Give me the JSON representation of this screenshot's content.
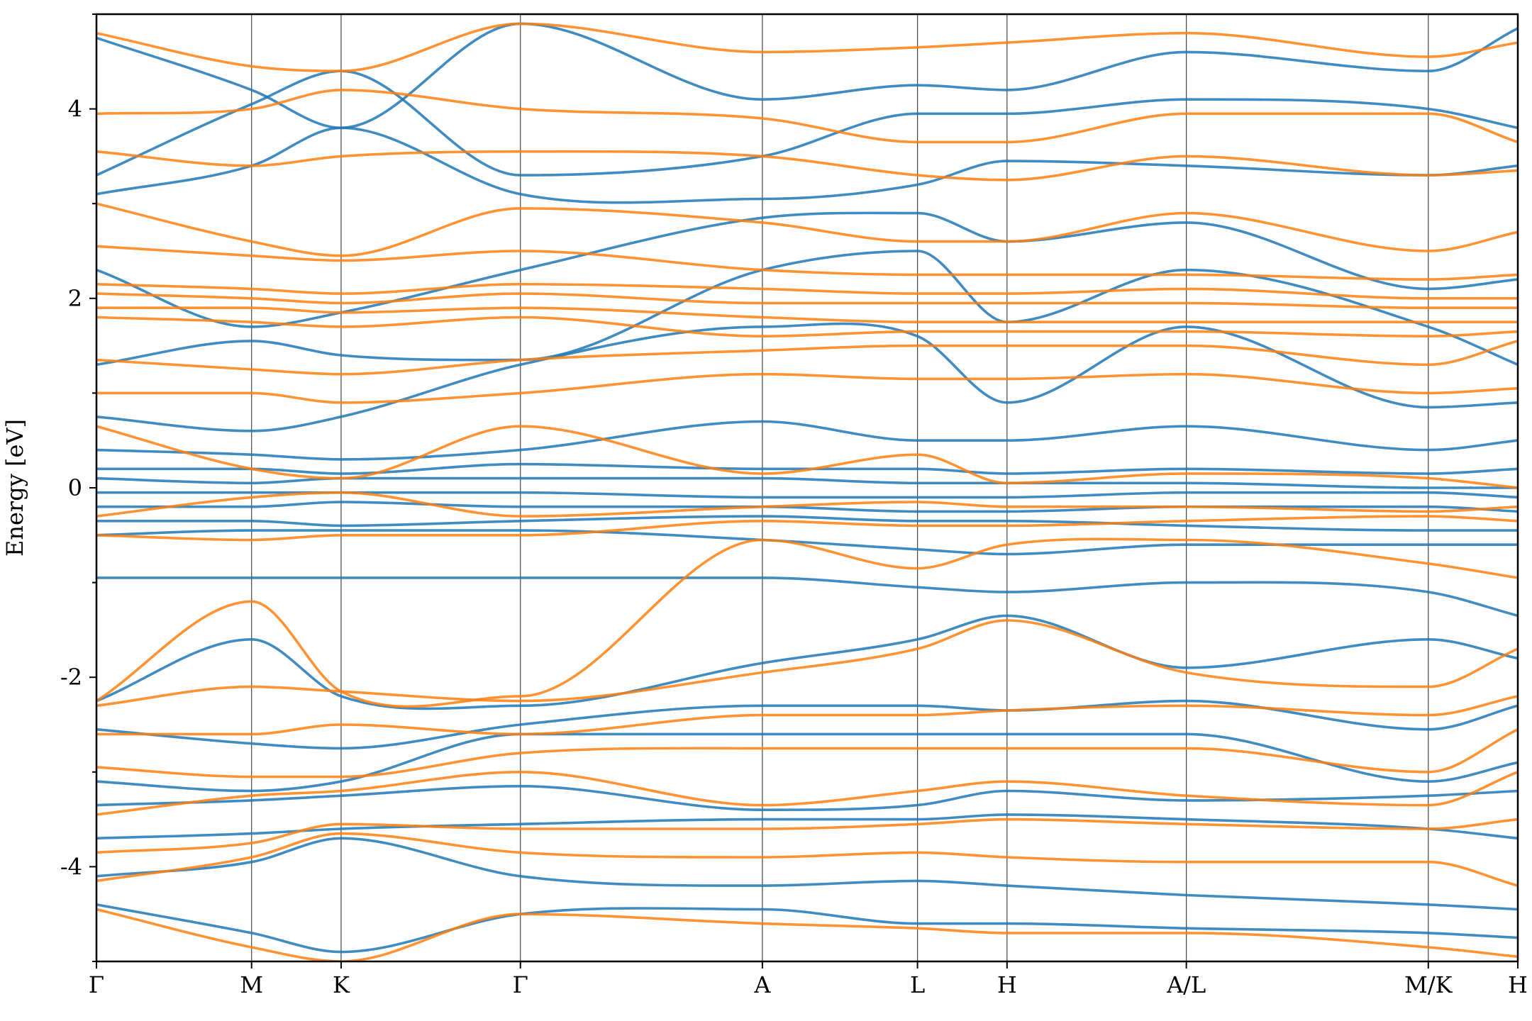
{
  "chart_data": {
    "type": "line",
    "title": "",
    "xlabel": "",
    "ylabel": "Energy [eV]",
    "ylim": [
      -5,
      5
    ],
    "yticks": [
      -4,
      -2,
      0,
      2,
      4
    ],
    "ytick_labels": [
      "-4",
      "-2",
      "0",
      "2",
      "4"
    ],
    "grid": false,
    "legend": "none",
    "kpath": {
      "labels": [
        "Γ",
        "M",
        "K",
        "Γ",
        "A",
        "L",
        "H",
        "A/L",
        "M/K",
        "H"
      ],
      "positions": [
        0,
        0.577,
        0.91,
        1.577,
        2.477,
        3.054,
        3.387,
        4.054,
        4.954,
        5.287
      ]
    },
    "series": [
      {
        "color": "#1f77b4",
        "bands": [
          [
            -4.4,
            -4.7,
            -4.9,
            -4.5,
            -4.45,
            -4.6,
            -4.6,
            -4.65,
            -4.7,
            -4.75
          ],
          [
            -4.1,
            -3.95,
            -3.7,
            -4.1,
            -4.2,
            -4.15,
            -4.2,
            -4.3,
            -4.4,
            -4.45
          ],
          [
            -3.7,
            -3.65,
            -3.6,
            -3.55,
            -3.5,
            -3.5,
            -3.45,
            -3.5,
            -3.6,
            -3.7
          ],
          [
            -3.35,
            -3.3,
            -3.25,
            -3.15,
            -3.4,
            -3.35,
            -3.2,
            -3.3,
            -3.25,
            -3.2
          ],
          [
            -3.1,
            -3.2,
            -3.1,
            -2.6,
            -2.6,
            -2.6,
            -2.6,
            -2.6,
            -3.1,
            -2.9
          ],
          [
            -2.55,
            -2.7,
            -2.75,
            -2.5,
            -2.3,
            -2.3,
            -2.35,
            -2.25,
            -2.55,
            -2.3
          ],
          [
            -2.25,
            -1.6,
            -2.2,
            -2.3,
            -1.85,
            -1.6,
            -1.35,
            -1.9,
            -1.6,
            -1.8
          ],
          [
            -0.95,
            -0.95,
            -0.95,
            -0.95,
            -0.95,
            -1.05,
            -1.1,
            -1.0,
            -1.1,
            -1.35
          ],
          [
            -0.5,
            -0.45,
            -0.45,
            -0.45,
            -0.55,
            -0.65,
            -0.7,
            -0.6,
            -0.6,
            -0.6
          ],
          [
            -0.35,
            -0.35,
            -0.4,
            -0.35,
            -0.3,
            -0.35,
            -0.35,
            -0.4,
            -0.45,
            -0.45
          ],
          [
            -0.2,
            -0.2,
            -0.15,
            -0.2,
            -0.2,
            -0.25,
            -0.25,
            -0.2,
            -0.2,
            -0.25
          ],
          [
            -0.05,
            -0.05,
            -0.05,
            -0.05,
            -0.1,
            -0.1,
            -0.1,
            -0.05,
            -0.05,
            -0.1
          ],
          [
            0.1,
            0.05,
            0.1,
            0.1,
            0.1,
            0.05,
            0.05,
            0.05,
            0.0,
            0.0
          ],
          [
            0.2,
            0.2,
            0.15,
            0.25,
            0.2,
            0.2,
            0.15,
            0.2,
            0.15,
            0.2
          ],
          [
            0.4,
            0.35,
            0.3,
            0.4,
            0.7,
            0.5,
            0.5,
            0.65,
            0.4,
            0.5
          ],
          [
            0.75,
            0.6,
            0.75,
            1.3,
            1.7,
            1.6,
            0.9,
            1.7,
            0.85,
            0.9
          ],
          [
            1.3,
            1.55,
            1.4,
            1.35,
            2.3,
            2.5,
            1.75,
            2.3,
            1.7,
            1.3
          ],
          [
            2.3,
            1.7,
            1.85,
            2.3,
            2.85,
            2.9,
            2.6,
            2.8,
            2.1,
            2.2
          ],
          [
            3.1,
            3.4,
            3.8,
            3.1,
            3.05,
            3.2,
            3.45,
            3.4,
            3.3,
            3.4
          ],
          [
            3.3,
            4.05,
            4.4,
            3.3,
            3.5,
            3.95,
            3.95,
            4.1,
            4.0,
            3.8
          ],
          [
            4.75,
            4.2,
            3.8,
            4.9,
            4.1,
            4.25,
            4.2,
            4.6,
            4.4,
            4.85
          ]
        ]
      },
      {
        "color": "#ff7f0e",
        "bands": [
          [
            -4.45,
            -4.85,
            -5.0,
            -4.5,
            -4.6,
            -4.65,
            -4.7,
            -4.7,
            -4.85,
            -4.95
          ],
          [
            -4.15,
            -3.9,
            -3.65,
            -3.85,
            -3.9,
            -3.85,
            -3.9,
            -3.95,
            -3.95,
            -4.2
          ],
          [
            -3.85,
            -3.75,
            -3.55,
            -3.6,
            -3.6,
            -3.55,
            -3.5,
            -3.55,
            -3.6,
            -3.5
          ],
          [
            -3.45,
            -3.25,
            -3.2,
            -3.0,
            -3.35,
            -3.2,
            -3.1,
            -3.25,
            -3.35,
            -3.0
          ],
          [
            -2.95,
            -3.05,
            -3.05,
            -2.8,
            -2.75,
            -2.75,
            -2.75,
            -2.75,
            -3.0,
            -2.55
          ],
          [
            -2.6,
            -2.6,
            -2.5,
            -2.6,
            -2.4,
            -2.4,
            -2.35,
            -2.3,
            -2.4,
            -2.2
          ],
          [
            -2.3,
            -2.1,
            -2.15,
            -2.25,
            -1.95,
            -1.7,
            -1.4,
            -1.95,
            -2.1,
            -1.7
          ],
          [
            -2.25,
            -1.2,
            -2.15,
            -2.2,
            -0.55,
            -0.85,
            -0.6,
            -0.55,
            -0.8,
            -0.95
          ],
          [
            -0.5,
            -0.55,
            -0.5,
            -0.5,
            -0.35,
            -0.4,
            -0.4,
            -0.35,
            -0.3,
            -0.35
          ],
          [
            -0.3,
            -0.1,
            -0.05,
            -0.3,
            -0.2,
            -0.15,
            -0.2,
            -0.2,
            -0.25,
            -0.2
          ],
          [
            0.65,
            0.2,
            0.1,
            0.65,
            0.15,
            0.35,
            0.05,
            0.15,
            0.1,
            0.0
          ],
          [
            1.0,
            1.0,
            0.9,
            1.0,
            1.2,
            1.15,
            1.15,
            1.2,
            1.0,
            1.05
          ],
          [
            1.35,
            1.25,
            1.2,
            1.35,
            1.45,
            1.5,
            1.5,
            1.5,
            1.3,
            1.55
          ],
          [
            1.8,
            1.75,
            1.7,
            1.8,
            1.6,
            1.65,
            1.65,
            1.65,
            1.6,
            1.65
          ],
          [
            1.9,
            1.9,
            1.85,
            1.9,
            1.8,
            1.75,
            1.75,
            1.75,
            1.75,
            1.75
          ],
          [
            2.05,
            2.0,
            1.95,
            2.05,
            1.95,
            1.95,
            1.95,
            1.95,
            1.9,
            1.9
          ],
          [
            2.15,
            2.1,
            2.05,
            2.15,
            2.1,
            2.05,
            2.05,
            2.1,
            2.0,
            2.0
          ],
          [
            2.55,
            2.45,
            2.4,
            2.5,
            2.3,
            2.25,
            2.25,
            2.25,
            2.2,
            2.25
          ],
          [
            3.0,
            2.6,
            2.45,
            2.95,
            2.8,
            2.6,
            2.6,
            2.9,
            2.5,
            2.7
          ],
          [
            3.55,
            3.4,
            3.5,
            3.55,
            3.5,
            3.3,
            3.25,
            3.5,
            3.3,
            3.35
          ],
          [
            3.95,
            4.0,
            4.2,
            4.0,
            3.9,
            3.65,
            3.65,
            3.95,
            3.95,
            3.65
          ],
          [
            4.8,
            4.45,
            4.4,
            4.9,
            4.6,
            4.65,
            4.7,
            4.8,
            4.55,
            4.7
          ]
        ]
      }
    ]
  }
}
